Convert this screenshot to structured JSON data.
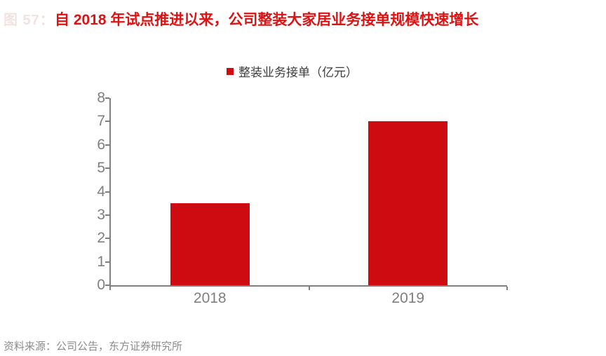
{
  "watermark": {
    "text": "图 57："
  },
  "title": {
    "text": "自 2018 年试点推进以来，公司整装大家居业务接单规模快速增长"
  },
  "legend": {
    "label": "整装业务接单（亿元）"
  },
  "source": {
    "text": "资料来源：公司公告，东方证券研究所"
  },
  "colors": {
    "bar": "#CE0B10",
    "title": "#DE1212",
    "axis": "#7F7F7F",
    "tick_label": "#7F7F7F",
    "legend_text": "#3B3B3B",
    "source_text": "#8C8C8C",
    "watermark": "#F2E2E2",
    "background": "#FFFFFF"
  },
  "chart_data": {
    "type": "bar",
    "title": "整装业务接单（亿元）",
    "series_name": "整装业务接单",
    "unit": "亿元",
    "categories": [
      "2018",
      "2019"
    ],
    "values": [
      3.5,
      7.0
    ],
    "xlabel": "",
    "ylabel": "",
    "ylim": [
      0,
      8
    ],
    "ytick_step": 1,
    "grid": false,
    "legend_position": "top-center"
  }
}
